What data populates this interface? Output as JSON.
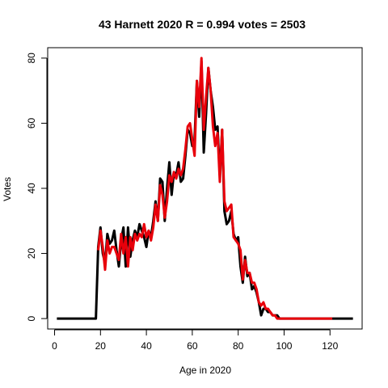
{
  "chart_data": {
    "type": "line",
    "title": "43 Harnett 2020 R = 0.994 votes = 2503",
    "xlabel": "Age in 2020",
    "ylabel": "Votes",
    "xlim": [
      -3,
      134
    ],
    "ylim": [
      -3.2,
      83.2
    ],
    "grid": false,
    "x_ticks": [
      0,
      20,
      40,
      60,
      80,
      100,
      120
    ],
    "y_ticks": [
      0,
      20,
      40,
      60,
      80
    ],
    "colors": {
      "black_series": "#000000",
      "red_series": "#e8000b",
      "axes": "#000000"
    },
    "series": [
      {
        "color": "#000000",
        "x": [
          1,
          2,
          3,
          4,
          5,
          6,
          7,
          8,
          9,
          10,
          11,
          12,
          13,
          14,
          15,
          16,
          17,
          18,
          19,
          20,
          21,
          22,
          23,
          24,
          25,
          26,
          27,
          28,
          29,
          30,
          31,
          32,
          33,
          34,
          35,
          36,
          37,
          38,
          39,
          40,
          41,
          42,
          43,
          44,
          45,
          46,
          47,
          48,
          49,
          50,
          51,
          52,
          53,
          54,
          55,
          56,
          57,
          58,
          59,
          60,
          61,
          62,
          63,
          64,
          65,
          66,
          67,
          68,
          69,
          70,
          71,
          72,
          73,
          74,
          75,
          76,
          77,
          78,
          79,
          80,
          81,
          82,
          83,
          84,
          85,
          86,
          87,
          88,
          89,
          90,
          91,
          92,
          93,
          94,
          95,
          96,
          97,
          98,
          99,
          100,
          101,
          102,
          103,
          104,
          105,
          106,
          107,
          108,
          109,
          110,
          111,
          112,
          113,
          114,
          115,
          116,
          117,
          118,
          119,
          120,
          121,
          122,
          123,
          124,
          125,
          126,
          127,
          128,
          129,
          130
        ],
        "y": [
          0,
          0,
          0,
          0,
          0,
          0,
          0,
          0,
          0,
          0,
          0,
          0,
          0,
          0,
          0,
          0,
          0,
          0,
          22,
          28,
          20,
          17,
          26,
          23,
          24,
          27,
          21,
          16,
          24,
          28,
          16,
          28,
          19,
          24,
          27,
          25,
          29,
          27,
          25,
          22,
          27,
          25,
          30,
          36,
          30,
          43,
          42,
          30,
          40,
          48,
          38,
          45,
          44,
          48,
          42,
          43,
          50,
          58,
          57,
          53,
          55,
          73,
          62,
          79,
          51,
          63,
          77,
          70,
          65,
          58,
          59,
          44,
          58,
          33,
          29,
          30,
          33,
          26,
          24,
          25,
          16,
          11,
          19,
          13,
          14,
          9,
          10,
          8,
          5,
          1,
          3,
          3,
          2,
          2,
          1,
          1,
          1,
          0,
          0,
          0,
          0,
          0,
          0,
          0,
          0,
          0,
          0,
          0,
          0,
          0,
          0,
          0,
          0,
          0,
          0,
          0,
          0,
          0,
          0,
          0,
          0,
          0,
          0,
          0,
          0,
          0,
          0,
          0,
          0,
          0
        ]
      },
      {
        "color": "#e8000b",
        "x": [
          19,
          20,
          21,
          22,
          23,
          24,
          25,
          26,
          27,
          28,
          29,
          30,
          31,
          32,
          33,
          34,
          35,
          36,
          37,
          38,
          39,
          40,
          41,
          42,
          43,
          44,
          45,
          46,
          47,
          48,
          49,
          50,
          51,
          52,
          53,
          54,
          55,
          56,
          57,
          58,
          59,
          60,
          61,
          62,
          63,
          64,
          65,
          66,
          67,
          68,
          69,
          70,
          71,
          72,
          73,
          74,
          75,
          76,
          77,
          78,
          79,
          80,
          81,
          82,
          83,
          84,
          85,
          86,
          87,
          88,
          89,
          90,
          91,
          92,
          93,
          94,
          95,
          96,
          97,
          98,
          99,
          100,
          101,
          102,
          103,
          104,
          105,
          106,
          107,
          108,
          109,
          110,
          111,
          112,
          119,
          120,
          121
        ],
        "y": [
          21,
          27,
          22,
          15,
          24,
          20,
          22,
          22,
          20,
          18,
          26,
          20,
          25,
          16,
          25,
          21,
          26,
          24,
          26,
          25,
          29,
          25,
          27,
          24,
          28,
          35,
          30,
          41,
          38,
          31,
          36,
          44,
          42,
          45,
          43,
          46,
          44,
          46,
          52,
          59,
          60,
          55,
          50,
          73,
          65,
          80,
          58,
          68,
          77,
          70,
          59,
          53,
          57,
          42,
          58,
          36,
          33,
          34,
          35,
          25,
          24,
          23,
          21,
          12,
          18,
          14,
          14,
          11,
          11,
          9,
          5,
          4,
          5,
          3,
          3,
          2,
          1,
          1,
          0,
          0,
          0,
          0,
          0,
          0,
          0,
          0,
          0,
          0,
          0,
          0,
          0,
          0,
          0,
          0,
          0,
          0,
          0
        ]
      }
    ]
  }
}
